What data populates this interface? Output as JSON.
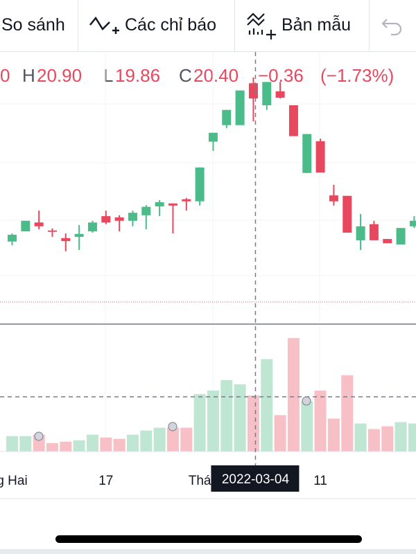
{
  "toolbar": {
    "compare": "So sánh",
    "indicators": "Các chỉ báo",
    "templates": "Bản mẫu"
  },
  "legend": {
    "open": "0",
    "high_label": "H",
    "high": "20.90",
    "low_label": "L",
    "low": "19.86",
    "close_label": "C",
    "close": "20.40",
    "change": "−0.36",
    "change_pct": "(−1.73%)"
  },
  "chart_data": {
    "type": "candlestick",
    "categories": [
      "g Hai",
      null,
      null,
      null,
      null,
      null,
      null,
      "17",
      null,
      null,
      null,
      null,
      null,
      null,
      "Thá",
      null,
      null,
      null,
      null,
      null,
      null,
      null,
      null,
      "11",
      null,
      null,
      null,
      null,
      null,
      null,
      null
    ],
    "crosshair_label": "2022-03-04",
    "crosshair_index": 18,
    "open": [
      17.02,
      17.26,
      17.47,
      17.28,
      17.1,
      17.13,
      17.26,
      17.62,
      17.59,
      17.51,
      17.64,
      17.85,
      17.92,
      18.02,
      17.97,
      19.38,
      19.77,
      19.77,
      20.76,
      20.24,
      20.57,
      20.24,
      18.64,
      19.39,
      18.11,
      18.1,
      17.05,
      17.43,
      17.08,
      16.95,
      17.38
    ],
    "high": [
      17.21,
      17.51,
      17.75,
      17.33,
      17.21,
      17.41,
      17.51,
      17.75,
      17.64,
      17.75,
      17.88,
      18.0,
      17.92,
      18.05,
      18.77,
      19.59,
      20.13,
      20.59,
      20.9,
      20.79,
      20.79,
      20.24,
      19.56,
      19.45,
      18.36,
      18.1,
      17.67,
      17.51,
      17.08,
      17.34,
      17.62
    ],
    "low": [
      16.93,
      17.26,
      17.31,
      17.13,
      16.79,
      16.82,
      17.23,
      17.43,
      17.26,
      17.38,
      17.31,
      17.62,
      17.21,
      17.75,
      17.87,
      19.16,
      19.7,
      19.77,
      19.86,
      20.13,
      20.4,
      19.51,
      18.64,
      18.65,
      17.87,
      17.23,
      16.82,
      17.05,
      16.98,
      16.95,
      17.34
    ],
    "close": [
      17.18,
      17.51,
      17.38,
      17.25,
      17.03,
      17.2,
      17.47,
      17.47,
      17.51,
      17.7,
      17.84,
      17.95,
      17.87,
      17.97,
      18.77,
      19.59,
      20.13,
      20.59,
      20.4,
      20.79,
      20.42,
      19.51,
      19.56,
      18.65,
      17.97,
      17.23,
      17.38,
      17.05,
      16.98,
      17.34,
      17.51
    ],
    "ylim": [
      15.2,
      21.5
    ],
    "up_color": "#4cbb8a",
    "down_color": "#e8485e",
    "volume": {
      "values": [
        22,
        22,
        24,
        12,
        14,
        16,
        24,
        20,
        18,
        24,
        30,
        34,
        34,
        34,
        82,
        87,
        102,
        96,
        80,
        132,
        52,
        162,
        72,
        87,
        47,
        109,
        40,
        32,
        36,
        42,
        40
      ],
      "ylim": [
        0,
        180
      ],
      "up_color": "#bfe6d3",
      "down_color": "#f7c0c6"
    }
  }
}
